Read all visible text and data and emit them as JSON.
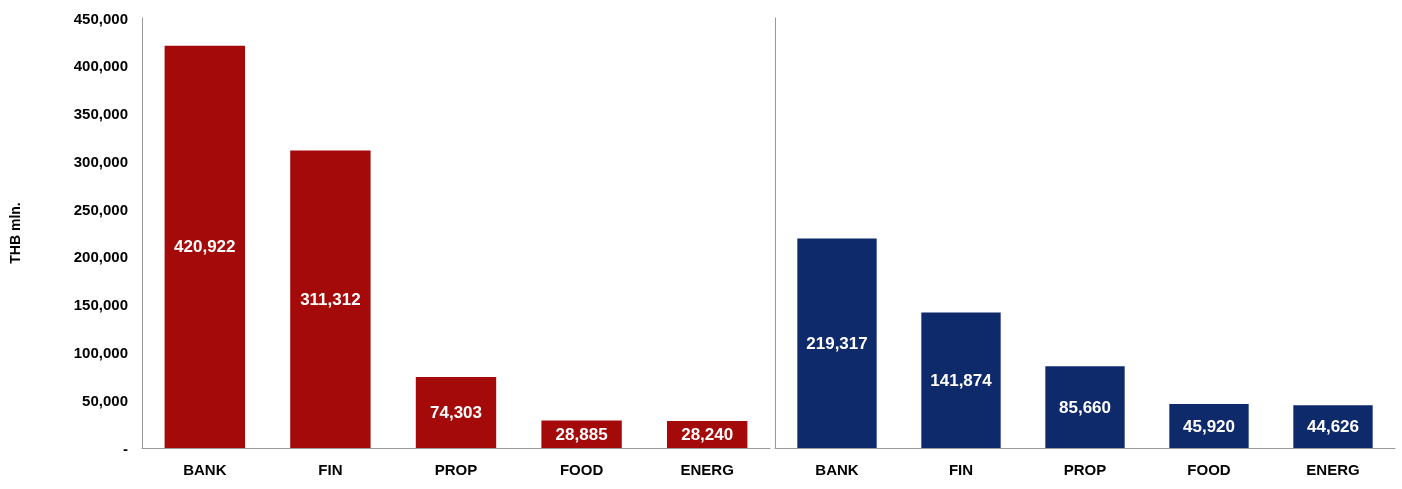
{
  "chart_data": [
    {
      "type": "bar",
      "ylabel": "THB mln.",
      "categories": [
        "BANK",
        "FIN",
        "PROP",
        "FOOD",
        "ENERG"
      ],
      "values": [
        420922,
        311312,
        74303,
        28885,
        28240
      ],
      "value_labels": [
        "420,922",
        "311,312",
        "74,303",
        "28,885",
        "28,240"
      ],
      "color": "#a50a0a",
      "ylim": [
        0,
        450000
      ],
      "yticks": [
        {
          "value": 0,
          "label": "-"
        },
        {
          "value": 50000,
          "label": "50,000"
        },
        {
          "value": 100000,
          "label": "100,000"
        },
        {
          "value": 150000,
          "label": "150,000"
        },
        {
          "value": 200000,
          "label": "200,000"
        },
        {
          "value": 250000,
          "label": "250,000"
        },
        {
          "value": 300000,
          "label": "300,000"
        },
        {
          "value": 350000,
          "label": "350,000"
        },
        {
          "value": 400000,
          "label": "400,000"
        },
        {
          "value": 450000,
          "label": "450,000"
        }
      ]
    },
    {
      "type": "bar",
      "categories": [
        "BANK",
        "FIN",
        "PROP",
        "FOOD",
        "ENERG"
      ],
      "values": [
        219317,
        141874,
        85660,
        45920,
        44626
      ],
      "value_labels": [
        "219,317",
        "141,874",
        "85,660",
        "45,920",
        "44,626"
      ],
      "color": "#0f2a6b",
      "ylim": [
        0,
        450000
      ],
      "tick_labels": "x"
    }
  ]
}
